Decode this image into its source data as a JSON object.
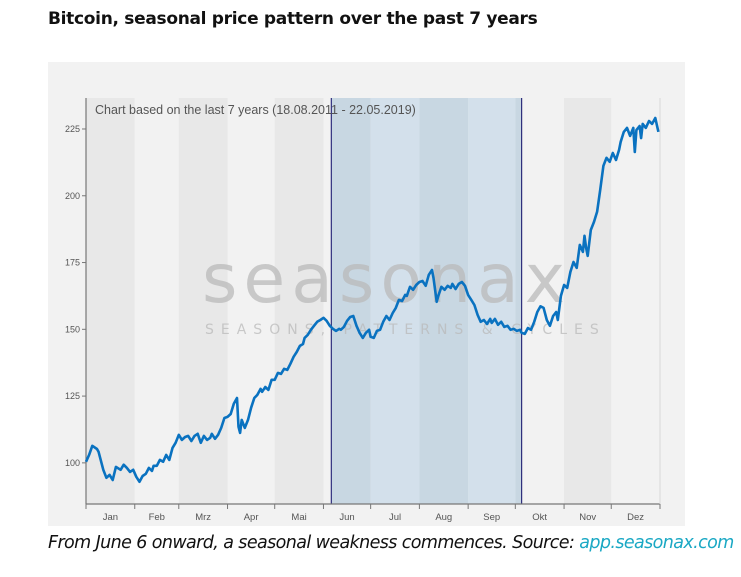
{
  "title": "Bitcoin, seasonal price pattern over the past 7 years",
  "caption": {
    "text": "From June 6 onward, a seasonal weakness commences. Source: ",
    "link": "app.seasonax.com"
  },
  "watermark": {
    "logo": "seasonax",
    "tagline": "SEASONS, PATTERNS & CYCLES"
  },
  "chart_data": {
    "type": "line",
    "title": "",
    "annotation": "Chart based on the last 7 years (18.08.2011 - 22.05.2019)",
    "xlabel": "",
    "ylabel": "",
    "x_tick_labels": [
      "Jan",
      "Feb",
      "Mrz",
      "Apr",
      "Mai",
      "Jun",
      "Jul",
      "Aug",
      "Sep",
      "Okt",
      "Nov",
      "Dez"
    ],
    "y_ticks": [
      100,
      125,
      150,
      175,
      200,
      225
    ],
    "ylim": [
      84.6,
      236.6
    ],
    "grid": false,
    "highlight_period": {
      "start": "06-06",
      "end": "10-05"
    },
    "colors": {
      "line": "#0a72c0",
      "highlight": "#d3e0eb",
      "highlight_alt": "#c8d7e2",
      "marker_lines": "#2e2e7c",
      "band_dark": "#e8e8e8",
      "band_light": "#f2f2f2"
    },
    "series": [
      {
        "dates": [
          "01-01",
          "01-03",
          "01-05",
          "01-08",
          "01-09",
          "01-12",
          "01-14",
          "01-16",
          "01-18",
          "01-20",
          "01-23",
          "01-25",
          "01-27",
          "01-29",
          "01-31",
          "02-02",
          "02-04",
          "02-06",
          "02-08",
          "02-10",
          "02-12",
          "02-13",
          "02-15",
          "02-17",
          "02-19",
          "02-21",
          "02-23",
          "02-25",
          "02-27",
          "03-01",
          "03-03",
          "03-05",
          "03-07",
          "03-09",
          "03-11",
          "03-13",
          "03-15",
          "03-17",
          "03-19",
          "03-21",
          "03-22",
          "03-24",
          "03-26",
          "03-28",
          "03-30",
          "04-01",
          "04-03",
          "04-05",
          "04-07",
          "04-08",
          "04-09",
          "04-10",
          "04-12",
          "04-14",
          "04-16",
          "04-18",
          "04-20",
          "04-22",
          "04-23",
          "04-25",
          "04-27",
          "04-29",
          "05-01",
          "05-03",
          "05-05",
          "05-07",
          "05-09",
          "05-11",
          "05-13",
          "05-15",
          "05-17",
          "05-19",
          "05-20",
          "05-22",
          "05-24",
          "05-26",
          "05-28",
          "05-30",
          "06-01",
          "06-03",
          "06-05",
          "06-07",
          "06-09",
          "06-11",
          "06-12",
          "06-14",
          "06-16",
          "06-18",
          "06-20",
          "06-22",
          "06-24",
          "06-26",
          "06-28",
          "06-30",
          "07-01",
          "07-03",
          "07-05",
          "07-07",
          "07-09",
          "07-11",
          "07-13",
          "07-15",
          "07-17",
          "07-19",
          "07-21",
          "07-23",
          "07-24",
          "07-26",
          "07-28",
          "07-30",
          "08-01",
          "08-03",
          "08-05",
          "08-07",
          "08-09",
          "08-10",
          "08-11",
          "08-12",
          "08-13",
          "08-15",
          "08-17",
          "08-19",
          "08-21",
          "08-22",
          "08-24",
          "08-26",
          "08-28",
          "08-30",
          "09-01",
          "09-03",
          "09-05",
          "09-07",
          "09-09",
          "09-11",
          "09-13",
          "09-15",
          "09-16",
          "09-18",
          "09-20",
          "09-22",
          "09-24",
          "09-26",
          "09-28",
          "09-30",
          "10-02",
          "10-04",
          "10-05",
          "10-07",
          "10-09",
          "10-11",
          "10-13",
          "10-15",
          "10-17",
          "10-19",
          "10-21",
          "10-23",
          "10-25",
          "10-27",
          "10-28",
          "10-30",
          "11-01",
          "11-03",
          "11-05",
          "11-07",
          "11-09",
          "11-11",
          "11-13",
          "11-14",
          "11-15",
          "11-16",
          "11-18",
          "11-20",
          "11-22",
          "11-24",
          "11-26",
          "11-28",
          "11-30",
          "12-02",
          "12-04",
          "12-06",
          "12-07",
          "12-09",
          "12-11",
          "12-13",
          "12-15",
          "12-16",
          "12-17",
          "12-19",
          "12-20",
          "12-21",
          "12-23",
          "12-25",
          "12-27",
          "12-29",
          "12-31"
        ],
        "values": [
          100.4,
          103.0,
          106.4,
          105.2,
          104.1,
          97.4,
          94.4,
          95.5,
          93.6,
          98.5,
          97.4,
          99.3,
          98.1,
          96.6,
          97.4,
          94.8,
          92.9,
          95.1,
          95.9,
          98.1,
          97.0,
          98.9,
          98.9,
          101.1,
          100.4,
          103.0,
          101.1,
          105.6,
          107.5,
          110.5,
          108.6,
          109.7,
          110.1,
          108.2,
          110.1,
          110.9,
          107.5,
          110.1,
          108.6,
          109.4,
          110.9,
          109.0,
          110.5,
          113.1,
          116.8,
          117.2,
          118.3,
          122.1,
          124.3,
          113.5,
          111.2,
          116.1,
          113.1,
          116.1,
          120.6,
          124.3,
          125.5,
          127.7,
          126.6,
          128.4,
          127.3,
          131.1,
          131.1,
          133.7,
          133.3,
          135.2,
          134.8,
          137.1,
          139.7,
          141.5,
          143.8,
          144.5,
          146.8,
          147.9,
          149.8,
          151.3,
          152.8,
          153.5,
          154.3,
          153.2,
          151.3,
          150.2,
          149.4,
          150.2,
          149.8,
          150.9,
          153.2,
          154.6,
          155.0,
          151.3,
          148.7,
          146.8,
          148.7,
          149.8,
          147.2,
          146.8,
          149.4,
          149.8,
          152.8,
          155.0,
          153.5,
          156.1,
          158.0,
          161.0,
          160.6,
          162.9,
          162.5,
          165.9,
          164.8,
          166.6,
          167.7,
          168.1,
          166.3,
          170.4,
          172.2,
          169.2,
          164.8,
          160.3,
          162.5,
          165.9,
          164.8,
          166.3,
          165.5,
          167.0,
          165.1,
          167.0,
          167.7,
          166.3,
          162.9,
          161.0,
          159.1,
          155.4,
          152.8,
          153.5,
          152.0,
          153.9,
          152.4,
          153.9,
          151.7,
          152.8,
          150.9,
          151.3,
          149.8,
          150.2,
          149.4,
          149.8,
          148.7,
          148.3,
          150.5,
          149.8,
          152.8,
          156.5,
          158.6,
          158.0,
          153.5,
          151.3,
          155.0,
          156.5,
          153.5,
          162.5,
          166.6,
          165.5,
          171.5,
          175.2,
          173.0,
          181.6,
          179.0,
          185.0,
          180.5,
          177.5,
          187.2,
          190.2,
          194.0,
          202.2,
          211.2,
          214.2,
          212.7,
          216.0,
          213.4,
          217.2,
          220.2,
          223.9,
          225.4,
          222.4,
          225.4,
          216.4,
          224.6,
          226.1,
          221.6,
          226.9,
          225.4,
          228.0,
          226.9,
          229.1,
          223.9
        ]
      }
    ]
  }
}
